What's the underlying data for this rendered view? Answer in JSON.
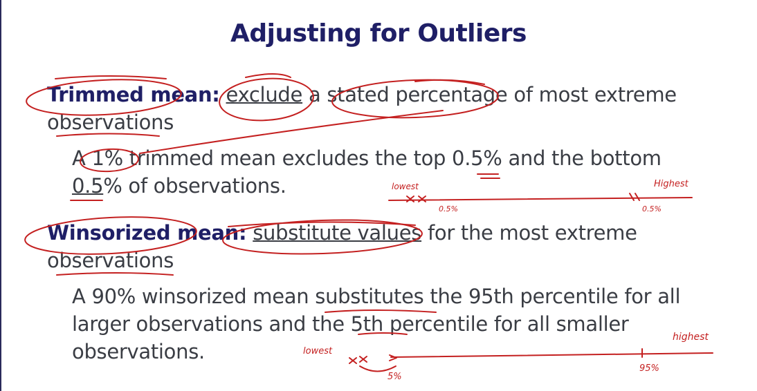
{
  "slide": {
    "title": "Adjusting for Outliers",
    "trimmed": {
      "term": "Trimmed mean:",
      "def_word": "exclude",
      "def_rest": " a stated percentage of most extreme",
      "def_cont": "observations",
      "example_line1": "A 1% trimmed mean excludes the top 0.5% and the bottom",
      "example_line2_part1": "0.5",
      "example_line2_part2": "% of observations."
    },
    "winsorized": {
      "term": "Winsorized mean:",
      "def_space": " ",
      "def_word": "substitute values",
      "def_rest": " for the most extreme",
      "def_cont": "observations",
      "example_line1": "A 90% winsorized mean substitutes the 95th percentile for all",
      "example_line2": "larger observations and the 5th percentile for all smaller",
      "example_line3": "observations."
    }
  },
  "annotations": {
    "trim_lowest": "lowest",
    "trim_highest": "Highest",
    "trim_low_pct": "0.5%",
    "trim_high_pct": "0.5%",
    "win_lowest": "lowest",
    "win_highest": "highest",
    "win_low_pct": "5%",
    "win_high_pct": "95%",
    "ink_color": "#c42020"
  }
}
